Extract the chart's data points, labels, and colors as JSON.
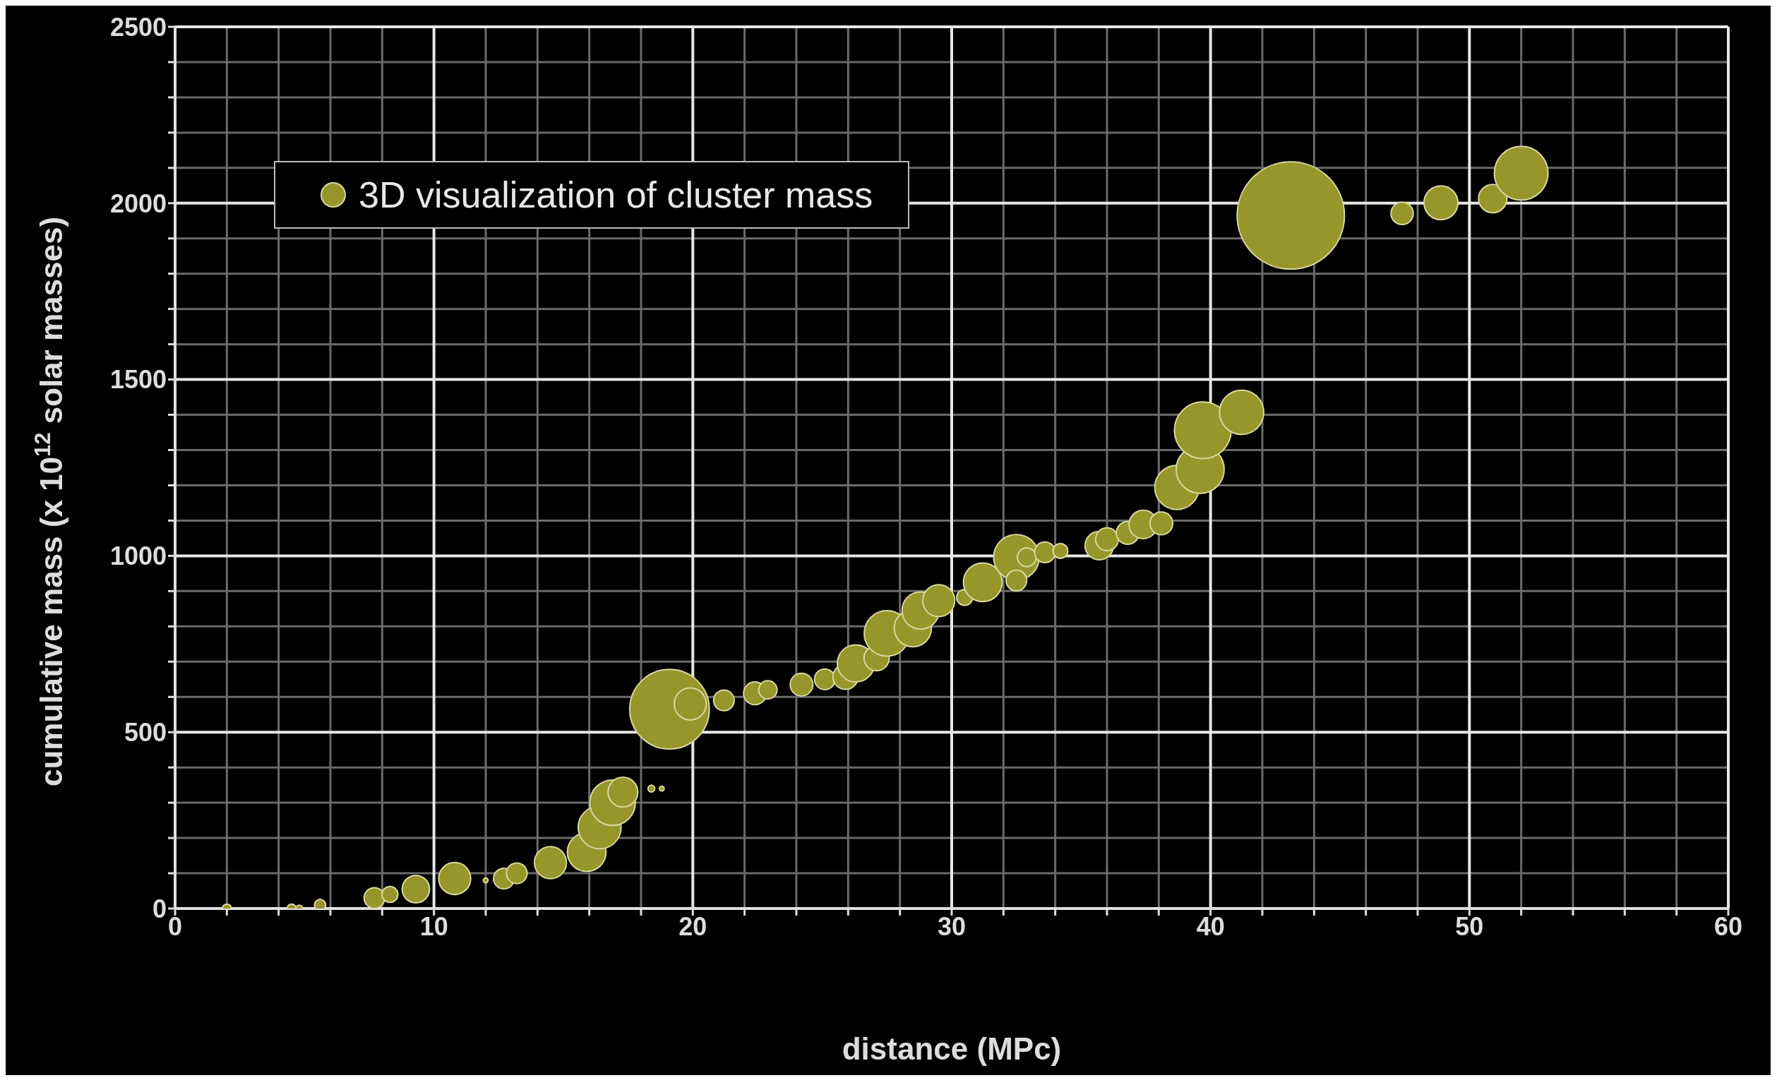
{
  "chart_data": {
    "type": "bubble",
    "xlabel": "distance (MPc)",
    "ylabel": "cumulative mass (x 10$^{12}$ solar masses)",
    "series": [
      {
        "name": "3D visualization of cluster mass",
        "color": "#96962a",
        "x": [
          2.0,
          4.5,
          4.8,
          5.6,
          7.7,
          8.3,
          9.3,
          10.8,
          12.0,
          12.7,
          13.2,
          14.5,
          15.9,
          16.4,
          16.9,
          17.3,
          18.4,
          18.8,
          19.1,
          19.9,
          21.2,
          22.4,
          22.9,
          24.2,
          25.1,
          25.9,
          26.3,
          27.1,
          27.5,
          28.5,
          28.8,
          29.5,
          30.5,
          31.2,
          32.5,
          32.5,
          32.9,
          33.6,
          34.2,
          35.7,
          36.0,
          36.8,
          37.4,
          38.1,
          38.7,
          39.6,
          39.7,
          41.2,
          43.1,
          47.4,
          48.9,
          50.9,
          52.0
        ],
        "values": [
          0,
          0,
          0,
          10,
          30,
          40,
          55,
          85,
          80,
          85,
          100,
          130,
          160,
          230,
          300,
          330,
          340,
          340,
          565,
          580,
          590,
          610,
          620,
          635,
          650,
          657,
          695,
          710,
          780,
          795,
          845,
          873,
          882,
          925,
          996,
          930,
          996,
          1010,
          1014,
          1029,
          1047,
          1065,
          1089,
          1092,
          1194,
          1245,
          1356,
          1407,
          1965,
          1971,
          2001,
          2013,
          2085
        ],
        "sizes": [
          0.007,
          0.007,
          0.004,
          0.011,
          0.037,
          0.022,
          0.065,
          0.089,
          0.002,
          0.037,
          0.037,
          0.089,
          0.13,
          0.16,
          0.18,
          0.077,
          0.004,
          0.002,
          0.55,
          0.089,
          0.037,
          0.045,
          0.029,
          0.045,
          0.037,
          0.055,
          0.12,
          0.055,
          0.18,
          0.12,
          0.12,
          0.089,
          0.022,
          0.13,
          0.18,
          0.037,
          0.03,
          0.037,
          0.019,
          0.07,
          0.045,
          0.045,
          0.07,
          0.045,
          0.17,
          0.2,
          0.28,
          0.17,
          1,
          0.043,
          0.1,
          0.07,
          0.25
        ]
      }
    ],
    "xlim": [
      0,
      60
    ],
    "xticks": [
      0,
      {
        "value": 2,
        "label": null
      },
      {
        "value": 4,
        "label": null
      },
      {
        "value": 6,
        "label": null
      },
      {
        "value": 8,
        "label": null
      },
      10,
      {
        "value": 12,
        "label": null
      },
      {
        "value": 14,
        "label": null
      },
      {
        "value": 16,
        "label": null
      },
      {
        "value": 18,
        "label": null
      },
      20,
      {
        "value": 22,
        "label": null
      },
      {
        "value": 24,
        "label": null
      },
      {
        "value": 26,
        "label": null
      },
      {
        "value": 28,
        "label": null
      },
      30,
      {
        "value": 32,
        "label": null
      },
      {
        "value": 34,
        "label": null
      },
      {
        "value": 36,
        "label": null
      },
      {
        "value": 38,
        "label": null
      },
      40,
      {
        "value": 42,
        "label": null
      },
      {
        "value": 44,
        "label": null
      },
      {
        "value": 46,
        "label": null
      },
      {
        "value": 48,
        "label": null
      },
      50,
      {
        "value": 52,
        "label": null
      },
      {
        "value": 54,
        "label": null
      },
      {
        "value": 56,
        "label": null
      },
      {
        "value": 58,
        "label": null
      },
      60
    ],
    "ylim": [
      0,
      2500
    ],
    "yticks": [
      0,
      {
        "value": 100,
        "label": null
      },
      {
        "value": 200,
        "label": null
      },
      {
        "value": 300,
        "label": null
      },
      {
        "value": 400,
        "label": null
      },
      500,
      {
        "value": 600,
        "label": null
      },
      {
        "value": 700,
        "label": null
      },
      {
        "value": 800,
        "label": null
      },
      {
        "value": 900,
        "label": null
      },
      1000,
      {
        "value": 1100,
        "label": null
      },
      {
        "value": 1200,
        "label": null
      },
      {
        "value": 1300,
        "label": null
      },
      {
        "value": 1400,
        "label": null
      },
      1500,
      {
        "value": 1600,
        "label": null
      },
      {
        "value": 1700,
        "label": null
      },
      {
        "value": 1800,
        "label": null
      },
      {
        "value": 1900,
        "label": null
      },
      2000,
      {
        "value": 2100,
        "label": null
      },
      {
        "value": 2200,
        "label": null
      },
      {
        "value": 2300,
        "label": null
      },
      {
        "value": 2400,
        "label": null
      },
      2500
    ],
    "grid": true,
    "legend": "top left"
  }
}
